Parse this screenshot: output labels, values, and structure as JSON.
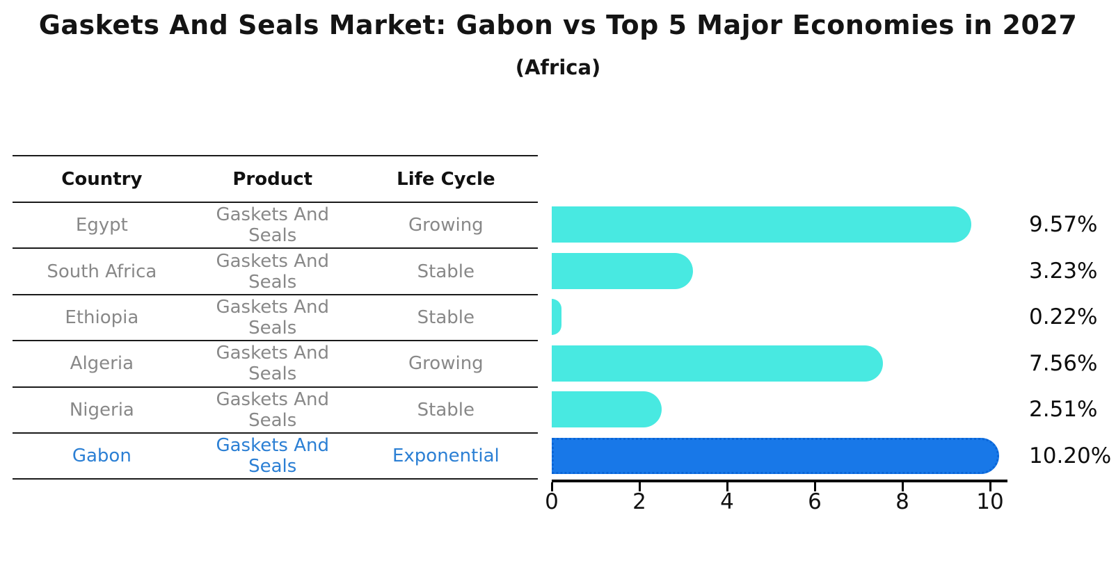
{
  "title": "Gaskets And Seals Market: Gabon vs Top 5 Major Economies in 2027",
  "subtitle": "(Africa)",
  "colors": {
    "bar_default": "#48e9e1",
    "bar_highlight": "#1878e8",
    "bar_highlight_border": "#0a65d6",
    "highlight_text": "#2b7fd4",
    "table_text": "#888888",
    "heading_text": "#111111",
    "axis_line": "#000000"
  },
  "table": {
    "columns": [
      "Country",
      "Product",
      "Life Cycle"
    ],
    "rows": [
      {
        "country": "Egypt",
        "product": "Gaskets And Seals",
        "life_cycle": "Growing",
        "highlight": false
      },
      {
        "country": "South Africa",
        "product": "Gaskets And Seals",
        "life_cycle": "Stable",
        "highlight": false
      },
      {
        "country": "Ethiopia",
        "product": "Gaskets And Seals",
        "life_cycle": "Stable",
        "highlight": false
      },
      {
        "country": "Algeria",
        "product": "Gaskets And Seals",
        "life_cycle": "Growing",
        "highlight": false
      },
      {
        "country": "Nigeria",
        "product": "Gaskets And Seals",
        "life_cycle": "Stable",
        "highlight": false
      },
      {
        "country": "Gabon",
        "product": "Gaskets And Seals",
        "life_cycle": "Exponential",
        "highlight": true
      }
    ]
  },
  "chart_data": {
    "type": "bar",
    "orientation": "horizontal",
    "title": "Gaskets And Seals Market: Gabon vs Top 5 Major Economies in 2027",
    "subtitle": "(Africa)",
    "categories": [
      "Egypt",
      "South Africa",
      "Ethiopia",
      "Algeria",
      "Nigeria",
      "Gabon"
    ],
    "values": [
      9.57,
      3.23,
      0.22,
      7.56,
      2.51,
      10.2
    ],
    "value_labels": [
      "9.57%",
      "3.23%",
      "0.22%",
      "7.56%",
      "2.51%",
      "10.20%"
    ],
    "highlight_index": 5,
    "xlabel": "",
    "ylabel": "",
    "xlim": [
      0,
      10.4
    ],
    "x_ticks": [
      0,
      2,
      4,
      6,
      8,
      10
    ],
    "grid": false,
    "legend": false
  }
}
